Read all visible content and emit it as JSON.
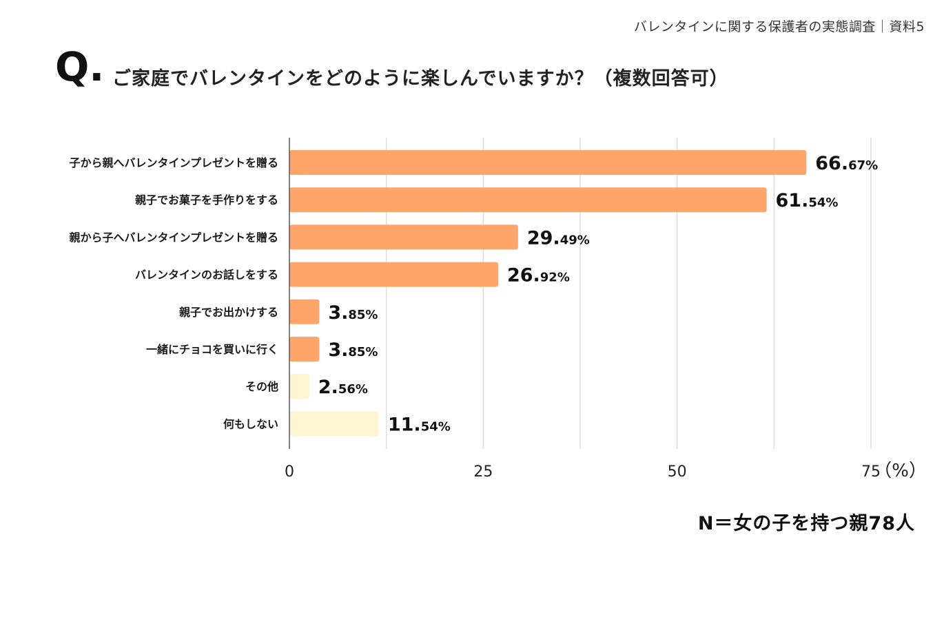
{
  "source_label": "バレンタインに関する保護者の実態調査｜資料5",
  "q_mark": "Q.",
  "chart_data": {
    "type": "bar",
    "orientation": "horizontal",
    "title": "ご家庭でバレンタインをどのように楽しんでいますか？（複数回答可）",
    "categories": [
      "子から親へバレンタインプレゼントを贈る",
      "親子でお菓子を手作りをする",
      "親から子へバレンタインプレゼントを贈る",
      "バレンタインのお話しをする",
      "親子でお出かけする",
      "一緒にチョコを買いに行く",
      "その他",
      "何もしない"
    ],
    "values": [
      66.67,
      61.54,
      29.49,
      26.92,
      3.85,
      3.85,
      2.56,
      11.54
    ],
    "value_labels": [
      {
        "int": "66.",
        "dec": "67%"
      },
      {
        "int": "61.",
        "dec": "54%"
      },
      {
        "int": "29.",
        "dec": "49%"
      },
      {
        "int": "26.",
        "dec": "92%"
      },
      {
        "int": "3.",
        "dec": "85%"
      },
      {
        "int": "3.",
        "dec": "85%"
      },
      {
        "int": "2.",
        "dec": "56%"
      },
      {
        "int": "11.",
        "dec": "54%"
      }
    ],
    "bar_colors": [
      "#ffa56a",
      "#ffa56a",
      "#ffa56a",
      "#ffa56a",
      "#ffa56a",
      "#ffa56a",
      "#fff4d2",
      "#fff4d2"
    ],
    "xlim": [
      0,
      75
    ],
    "xticks": [
      0,
      25,
      50,
      75
    ],
    "xtick_labels": [
      "0",
      "25",
      "50",
      "75"
    ],
    "unit": "（%）",
    "grid": true
  },
  "sample_note": "N＝女の子を持つ親78人"
}
